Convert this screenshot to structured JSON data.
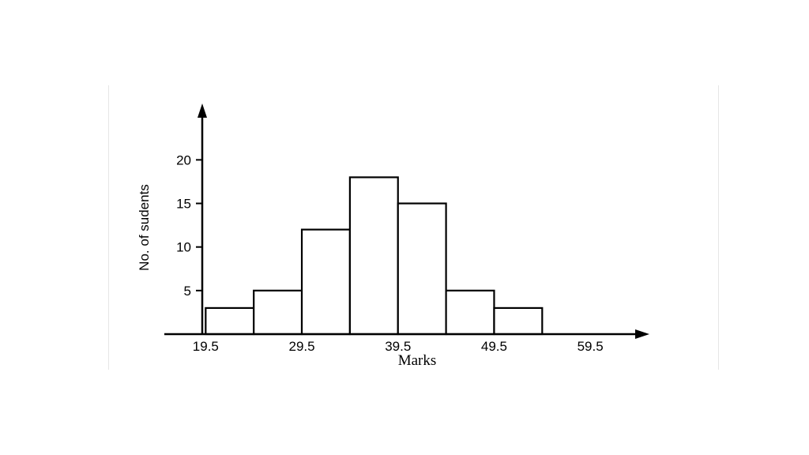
{
  "chart_data": {
    "type": "bar",
    "title": "",
    "xlabel": "Marks",
    "ylabel": "No. of sudents",
    "x_ticks": [
      "19.5",
      "29.5",
      "39.5",
      "49.5",
      "59.5"
    ],
    "x_tick_values": [
      19.5,
      29.5,
      39.5,
      49.5,
      59.5
    ],
    "y_ticks": [
      "5",
      "10",
      "15",
      "20"
    ],
    "y_tick_values": [
      5,
      10,
      15,
      20
    ],
    "bins": [
      {
        "start": 19.5,
        "end": 24.5,
        "value": 3
      },
      {
        "start": 24.5,
        "end": 29.5,
        "value": 5
      },
      {
        "start": 29.5,
        "end": 34.5,
        "value": 12
      },
      {
        "start": 34.5,
        "end": 39.5,
        "value": 18
      },
      {
        "start": 39.5,
        "end": 44.5,
        "value": 15
      },
      {
        "start": 44.5,
        "end": 49.5,
        "value": 5
      },
      {
        "start": 49.5,
        "end": 54.5,
        "value": 3
      }
    ],
    "xlim": [
      15.2,
      64.5
    ],
    "ylim": [
      0,
      25.2
    ],
    "grid": false,
    "bar_fill": "#ffffff",
    "bar_stroke": "#000000"
  }
}
